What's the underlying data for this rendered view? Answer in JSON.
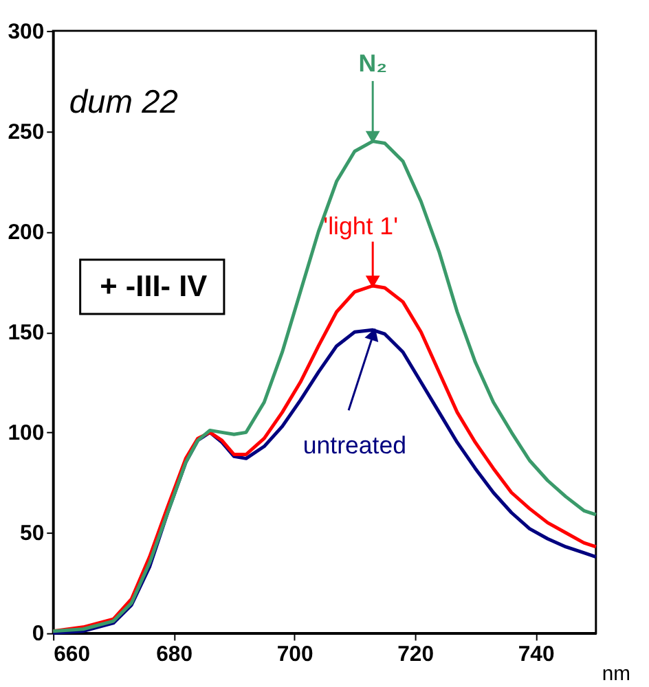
{
  "chart_data": {
    "type": "line",
    "xlabel": "nm",
    "x": [
      660,
      665,
      670,
      673,
      676,
      679,
      682,
      684,
      686,
      688,
      690,
      692,
      695,
      698,
      701,
      704,
      707,
      710,
      713,
      715,
      718,
      721,
      724,
      727,
      730,
      733,
      736,
      739,
      742,
      745,
      748,
      750
    ],
    "series": [
      {
        "name": "N₂",
        "color": "#3a9a6a",
        "values": [
          1,
          2,
          6,
          15,
          35,
          60,
          85,
          96,
          101,
          100,
          99,
          100,
          115,
          140,
          170,
          200,
          225,
          240,
          245,
          244,
          235,
          215,
          190,
          160,
          135,
          115,
          100,
          86,
          76,
          68,
          61,
          59
        ]
      },
      {
        "name": "'light 1'",
        "color": "#ff0000",
        "values": [
          1,
          3,
          7,
          17,
          38,
          63,
          87,
          97,
          100,
          96,
          89,
          89,
          97,
          110,
          125,
          143,
          160,
          170,
          173,
          172,
          165,
          150,
          130,
          110,
          95,
          82,
          70,
          62,
          55,
          50,
          45,
          43
        ]
      },
      {
        "name": "untreated",
        "color": "#00007f",
        "values": [
          0,
          1,
          5,
          14,
          33,
          60,
          85,
          96,
          100,
          95,
          88,
          87,
          93,
          103,
          116,
          130,
          143,
          150,
          151,
          149,
          140,
          125,
          110,
          95,
          82,
          70,
          60,
          52,
          47,
          43,
          40,
          38
        ]
      }
    ],
    "xlim": [
      660,
      750
    ],
    "xticks": [
      660,
      680,
      700,
      720,
      740
    ],
    "ylim": [
      0,
      300
    ],
    "yticks": [
      0,
      50,
      100,
      150,
      200,
      250,
      300
    ],
    "grid": false,
    "legend": false,
    "marker": "none",
    "line_style": "solid",
    "annotations": [
      "dum 22",
      "+ -III- IV"
    ]
  }
}
